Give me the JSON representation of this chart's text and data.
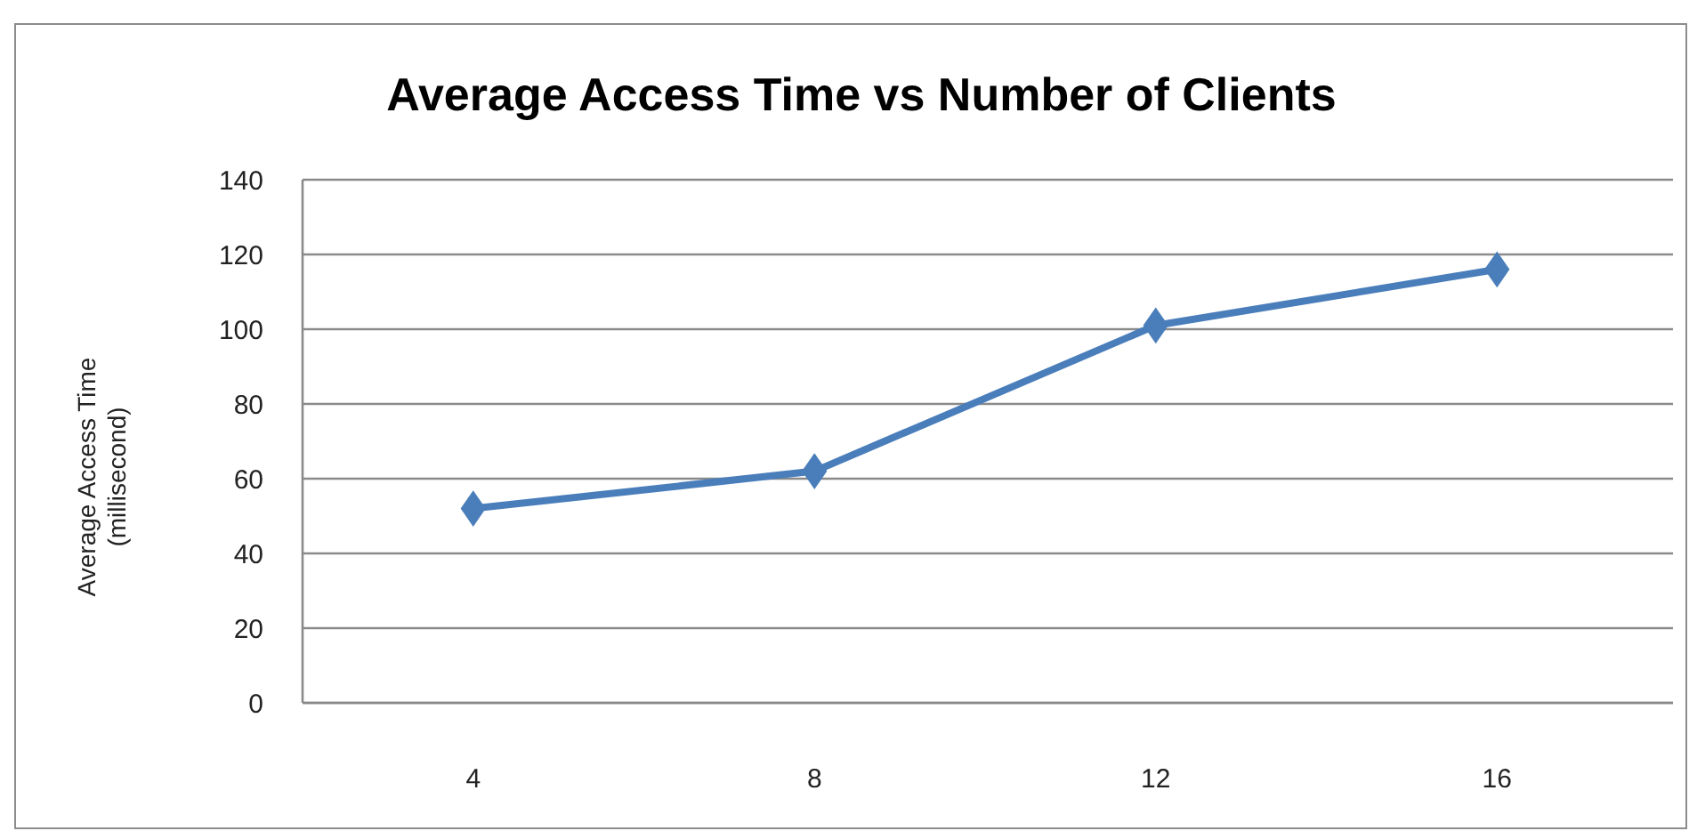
{
  "chart_data": {
    "type": "line",
    "title": "Average Access Time vs Number of Clients",
    "ylabel": "Average Access Time\n(millisecond)",
    "categories": [
      "4",
      "8",
      "12",
      "16"
    ],
    "series": [
      {
        "color": "#4a7ebb",
        "values": [
          52,
          62,
          101,
          116
        ]
      }
    ],
    "ylim": [
      0,
      140
    ],
    "yticks": [
      0,
      20,
      40,
      60,
      80,
      100,
      120,
      140
    ],
    "grid": "y",
    "marker": "diamond",
    "line_style": "solid"
  }
}
